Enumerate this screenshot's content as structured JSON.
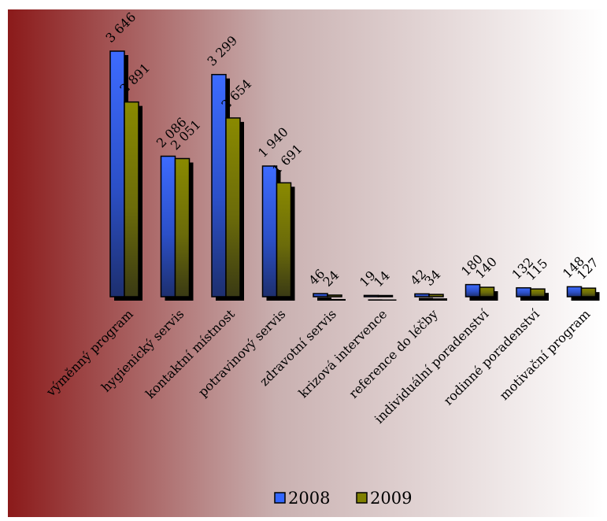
{
  "chart_data": {
    "type": "bar",
    "title": "",
    "xlabel": "",
    "ylabel": "",
    "categories": [
      "výměnný program",
      "hygienický servis",
      "kontaktní místnost",
      "potravinový servis",
      "zdravotní servis",
      "krizová intervence",
      "reference do léčby",
      "individuální poradenství",
      "rodinné poradenství",
      "motivační program"
    ],
    "series": [
      {
        "name": "2008",
        "values": [
          3646,
          2086,
          3299,
          1940,
          46,
          19,
          42,
          180,
          132,
          148
        ],
        "labels": [
          "3 646",
          "2 086",
          "3 299",
          "1 940",
          "46",
          "19",
          "42",
          "180",
          "132",
          "148"
        ],
        "color": "#3366ff"
      },
      {
        "name": "2009",
        "values": [
          2891,
          2051,
          2654,
          1691,
          24,
          14,
          34,
          140,
          115,
          127
        ],
        "labels": [
          "2 891",
          "2 051",
          "2 654",
          "1 691",
          "24",
          "14",
          "34",
          "140",
          "115",
          "127"
        ],
        "color": "#808000"
      }
    ],
    "ylim": [
      0,
      3646
    ],
    "grid": false,
    "legend_position": "bottom-center"
  },
  "colors": {
    "background_left": "#8b1a1a",
    "background_right": "#ffffff"
  }
}
